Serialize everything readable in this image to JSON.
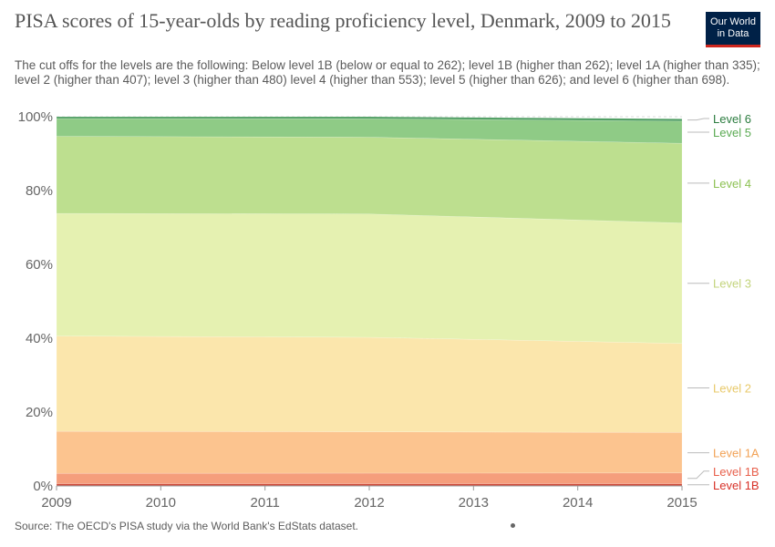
{
  "header": {
    "title": "PISA scores of 15-year-olds by reading proficiency level, Denmark, 2009 to 2015",
    "subtitle": "The cut offs for the levels are the following: Below level 1B (below or equal to 262); level 1B (higher than 262); level 1A (higher than 335); level 2 (higher than 407); level 3 (higher than 480) level 4 (higher than 553); level 5 (higher than 626); and level 6 (higher than 698).",
    "logo_line1": "Our World",
    "logo_line2": "in Data"
  },
  "footer": {
    "source": "Source: The OECD's PISA study via the World Bank's EdStats dataset."
  },
  "chart_data": {
    "type": "area",
    "stacked": true,
    "x": [
      2009,
      2015
    ],
    "xlim": [
      2009,
      2015
    ],
    "x_ticks": [
      "2009",
      "2010",
      "2011",
      "2012",
      "2013",
      "2014",
      "2015"
    ],
    "ylim": [
      0,
      100
    ],
    "y_ticks": [
      "0%",
      "20%",
      "40%",
      "60%",
      "80%",
      "100%"
    ],
    "grid": true,
    "series": [
      {
        "name": "Level 1B",
        "legend": "Level 1B",
        "color": "#cf4a3a",
        "legend_color": "#d73027",
        "x": [
          2009,
          2015
        ],
        "values": [
          0.6,
          0.6
        ]
      },
      {
        "name": "Level 1B",
        "legend": "Level 1B",
        "color": "#f59e7c",
        "legend_color": "#e8604c",
        "x": [
          2009,
          2015
        ],
        "values": [
          2.8,
          2.9
        ]
      },
      {
        "name": "Level 1A",
        "legend": "Level 1A",
        "color": "#fcc48f",
        "legend_color": "#f2a256",
        "x": [
          2009,
          2015
        ],
        "values": [
          11.4,
          11.0
        ]
      },
      {
        "name": "Level 2",
        "legend": "Level 2",
        "color": "#fbe6ac",
        "legend_color": "#e8c96a",
        "x": [
          2009,
          2012,
          2015
        ],
        "values": [
          25.8,
          25.6,
          24.1
        ]
      },
      {
        "name": "Level 3",
        "legend": "Level 3",
        "color": "#e5f1b1",
        "legend_color": "#c3d47c",
        "x": [
          2009,
          2012,
          2015
        ],
        "values": [
          33.2,
          33.4,
          32.6
        ]
      },
      {
        "name": "Level 4",
        "legend": "Level 4",
        "color": "#bddf8f",
        "legend_color": "#8cc152",
        "x": [
          2009,
          2012,
          2015
        ],
        "values": [
          20.9,
          20.8,
          21.6
        ]
      },
      {
        "name": "Level 5",
        "legend": "Level 5",
        "color": "#8fcb86",
        "legend_color": "#5aaa52",
        "x": [
          2009,
          2012,
          2015
        ],
        "values": [
          4.8,
          5.0,
          6.0
        ]
      },
      {
        "name": "Level 6",
        "legend": "Level 6",
        "color": "#4f9e63",
        "legend_color": "#2b7c3f",
        "x": [
          2009,
          2015
        ],
        "values": [
          0.5,
          0.6
        ]
      }
    ]
  }
}
